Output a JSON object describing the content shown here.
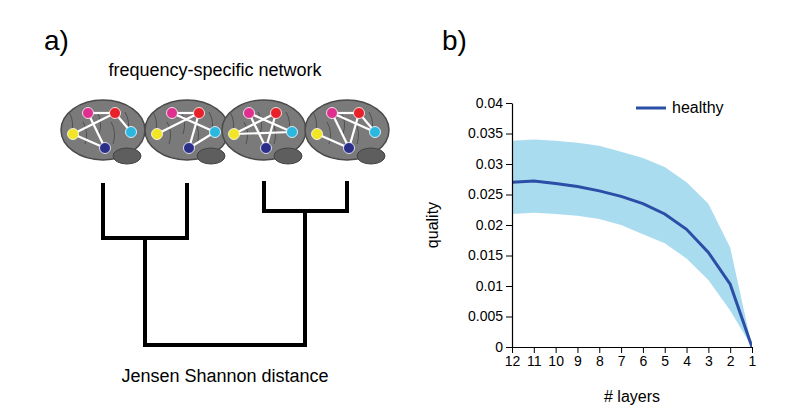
{
  "diagram": {
    "label": "a)",
    "title": "frequency-specific network",
    "axis_label": "Jensen Shannon distance"
  },
  "chart_data": {
    "type": "line",
    "panel_label": "b)",
    "xlabel": "# layers",
    "ylabel": "quality",
    "xlim": [
      12,
      1
    ],
    "xticks": [
      12,
      11,
      10,
      9,
      8,
      7,
      6,
      5,
      4,
      3,
      2,
      1
    ],
    "ylim": [
      0,
      0.04
    ],
    "yticks": [
      0,
      0.005,
      0.01,
      0.015,
      0.02,
      0.025,
      0.03,
      0.035,
      0.04
    ],
    "x": [
      12,
      11,
      10,
      9,
      8,
      7,
      6,
      5,
      4,
      3,
      2,
      1
    ],
    "series": [
      {
        "name": "healthy",
        "color": "#2b4ea6",
        "values": [
          0.027,
          0.0272,
          0.0268,
          0.0263,
          0.0256,
          0.0247,
          0.0235,
          0.0218,
          0.0193,
          0.0155,
          0.0103,
          0
        ],
        "lower": [
          0.0218,
          0.022,
          0.0218,
          0.0215,
          0.021,
          0.02,
          0.0185,
          0.017,
          0.0145,
          0.011,
          0.006,
          0
        ],
        "upper": [
          0.0338,
          0.034,
          0.0338,
          0.0335,
          0.033,
          0.032,
          0.031,
          0.0295,
          0.027,
          0.0235,
          0.0163,
          0
        ],
        "band_color": "#aadcf0"
      }
    ],
    "legend": "upper right",
    "grid": false
  }
}
